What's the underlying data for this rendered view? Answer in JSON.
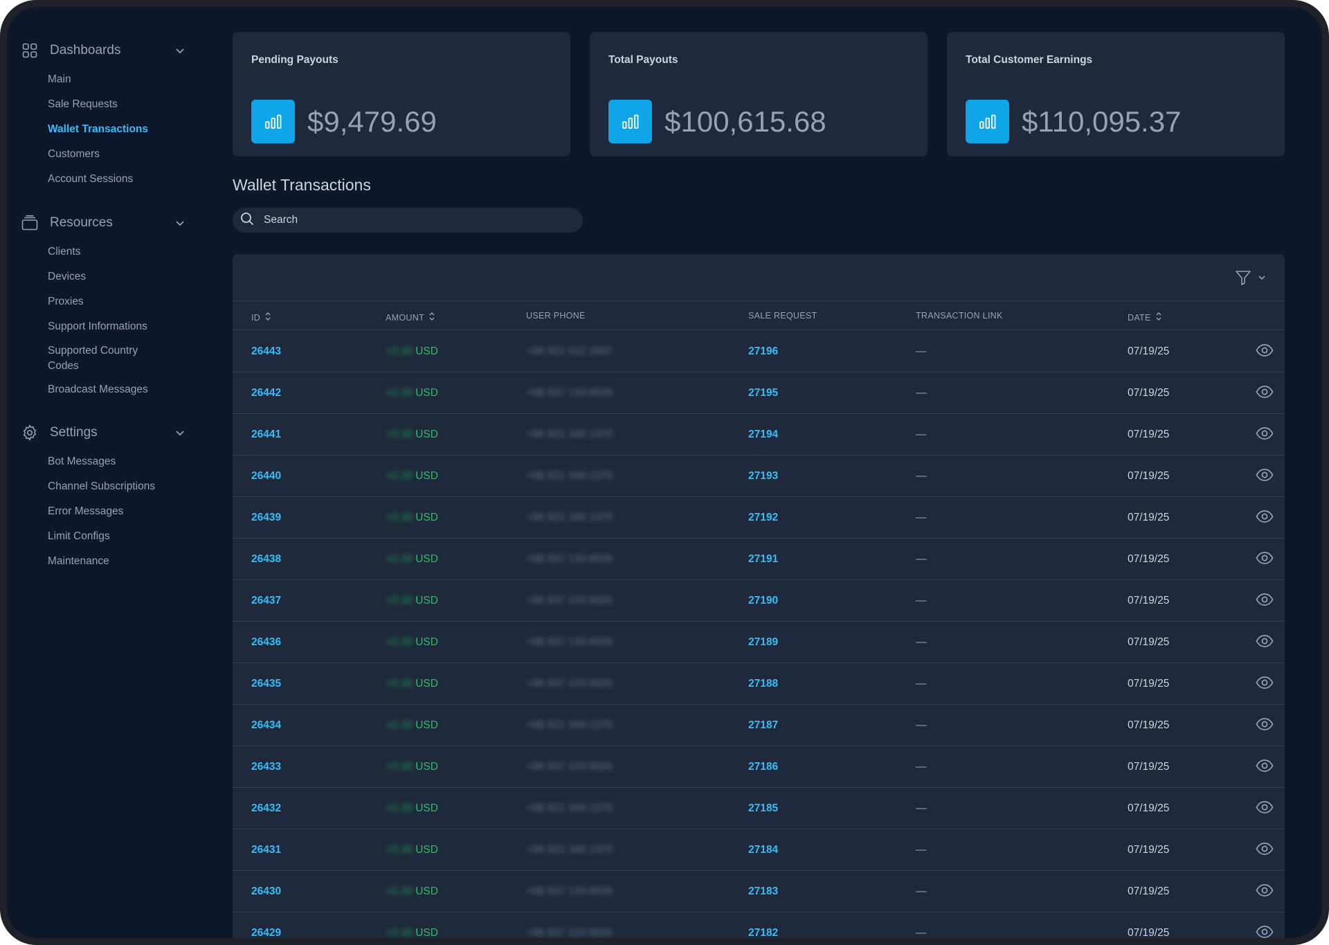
{
  "sidebar": {
    "sections": [
      {
        "title": "Dashboards",
        "icon": "grid-icon",
        "items": [
          "Main",
          "Sale Requests",
          "Wallet Transactions",
          "Customers",
          "Account Sessions"
        ]
      },
      {
        "title": "Resources",
        "icon": "archive-icon",
        "items": [
          "Clients",
          "Devices",
          "Proxies",
          "Support Informations",
          "Supported Country Codes",
          "Broadcast Messages"
        ]
      },
      {
        "title": "Settings",
        "icon": "gear-icon",
        "items": [
          "Bot Messages",
          "Channel Subscriptions",
          "Error Messages",
          "Limit Configs",
          "Maintenance"
        ]
      }
    ],
    "active_item": "Wallet Transactions"
  },
  "cards": [
    {
      "title": "Pending Payouts",
      "value": "$9,479.69",
      "icon": "bar-chart-icon"
    },
    {
      "title": "Total Payouts",
      "value": "$100,615.68",
      "icon": "bar-chart-icon"
    },
    {
      "title": "Total Customer Earnings",
      "value": "$110,095.37",
      "icon": "bar-chart-icon"
    }
  ],
  "page_title": "Wallet Transactions",
  "search": {
    "placeholder": "Search"
  },
  "table": {
    "columns": [
      "ID",
      "AMOUNT",
      "USER PHONE",
      "SALE REQUEST",
      "TRANSACTION LINK",
      "DATE"
    ],
    "rows": [
      {
        "id": "26443",
        "amount": "+0.30",
        "currency": "USD",
        "phone": "+98 921 512 2947",
        "sale_request": "27196",
        "link": "—",
        "date": "07/19/25"
      },
      {
        "id": "26442",
        "amount": "+0.30",
        "currency": "USD",
        "phone": "+98 937 133 6926",
        "sale_request": "27195",
        "link": "—",
        "date": "07/19/25"
      },
      {
        "id": "26441",
        "amount": "+0.30",
        "currency": "USD",
        "phone": "+98 921 340 1370",
        "sale_request": "27194",
        "link": "—",
        "date": "07/19/25"
      },
      {
        "id": "26440",
        "amount": "+0.30",
        "currency": "USD",
        "phone": "+98 921 340 1370",
        "sale_request": "27193",
        "link": "—",
        "date": "07/19/25"
      },
      {
        "id": "26439",
        "amount": "+0.30",
        "currency": "USD",
        "phone": "+98 921 340 1370",
        "sale_request": "27192",
        "link": "—",
        "date": "07/19/25"
      },
      {
        "id": "26438",
        "amount": "+0.30",
        "currency": "USD",
        "phone": "+98 937 133 6926",
        "sale_request": "27191",
        "link": "—",
        "date": "07/19/25"
      },
      {
        "id": "26437",
        "amount": "+0.30",
        "currency": "USD",
        "phone": "+98 937 133 6926",
        "sale_request": "27190",
        "link": "—",
        "date": "07/19/25"
      },
      {
        "id": "26436",
        "amount": "+0.30",
        "currency": "USD",
        "phone": "+98 937 133 6926",
        "sale_request": "27189",
        "link": "—",
        "date": "07/19/25"
      },
      {
        "id": "26435",
        "amount": "+0.30",
        "currency": "USD",
        "phone": "+98 937 133 6926",
        "sale_request": "27188",
        "link": "—",
        "date": "07/19/25"
      },
      {
        "id": "26434",
        "amount": "+0.30",
        "currency": "USD",
        "phone": "+98 921 340 1370",
        "sale_request": "27187",
        "link": "—",
        "date": "07/19/25"
      },
      {
        "id": "26433",
        "amount": "+0.30",
        "currency": "USD",
        "phone": "+98 937 133 6926",
        "sale_request": "27186",
        "link": "—",
        "date": "07/19/25"
      },
      {
        "id": "26432",
        "amount": "+0.30",
        "currency": "USD",
        "phone": "+98 921 340 1370",
        "sale_request": "27185",
        "link": "—",
        "date": "07/19/25"
      },
      {
        "id": "26431",
        "amount": "+0.30",
        "currency": "USD",
        "phone": "+98 921 340 1370",
        "sale_request": "27184",
        "link": "—",
        "date": "07/19/25"
      },
      {
        "id": "26430",
        "amount": "+0.30",
        "currency": "USD",
        "phone": "+98 937 133 6926",
        "sale_request": "27183",
        "link": "—",
        "date": "07/19/25"
      },
      {
        "id": "26429",
        "amount": "+0.30",
        "currency": "USD",
        "phone": "+98 937 133 6926",
        "sale_request": "27182",
        "link": "—",
        "date": "07/19/25"
      }
    ]
  },
  "colors": {
    "accent": "#38bdf8",
    "icon_bg": "#0ea5e9",
    "positive": "#22c55e",
    "background": "#0f172a",
    "surface": "#1e293b"
  }
}
